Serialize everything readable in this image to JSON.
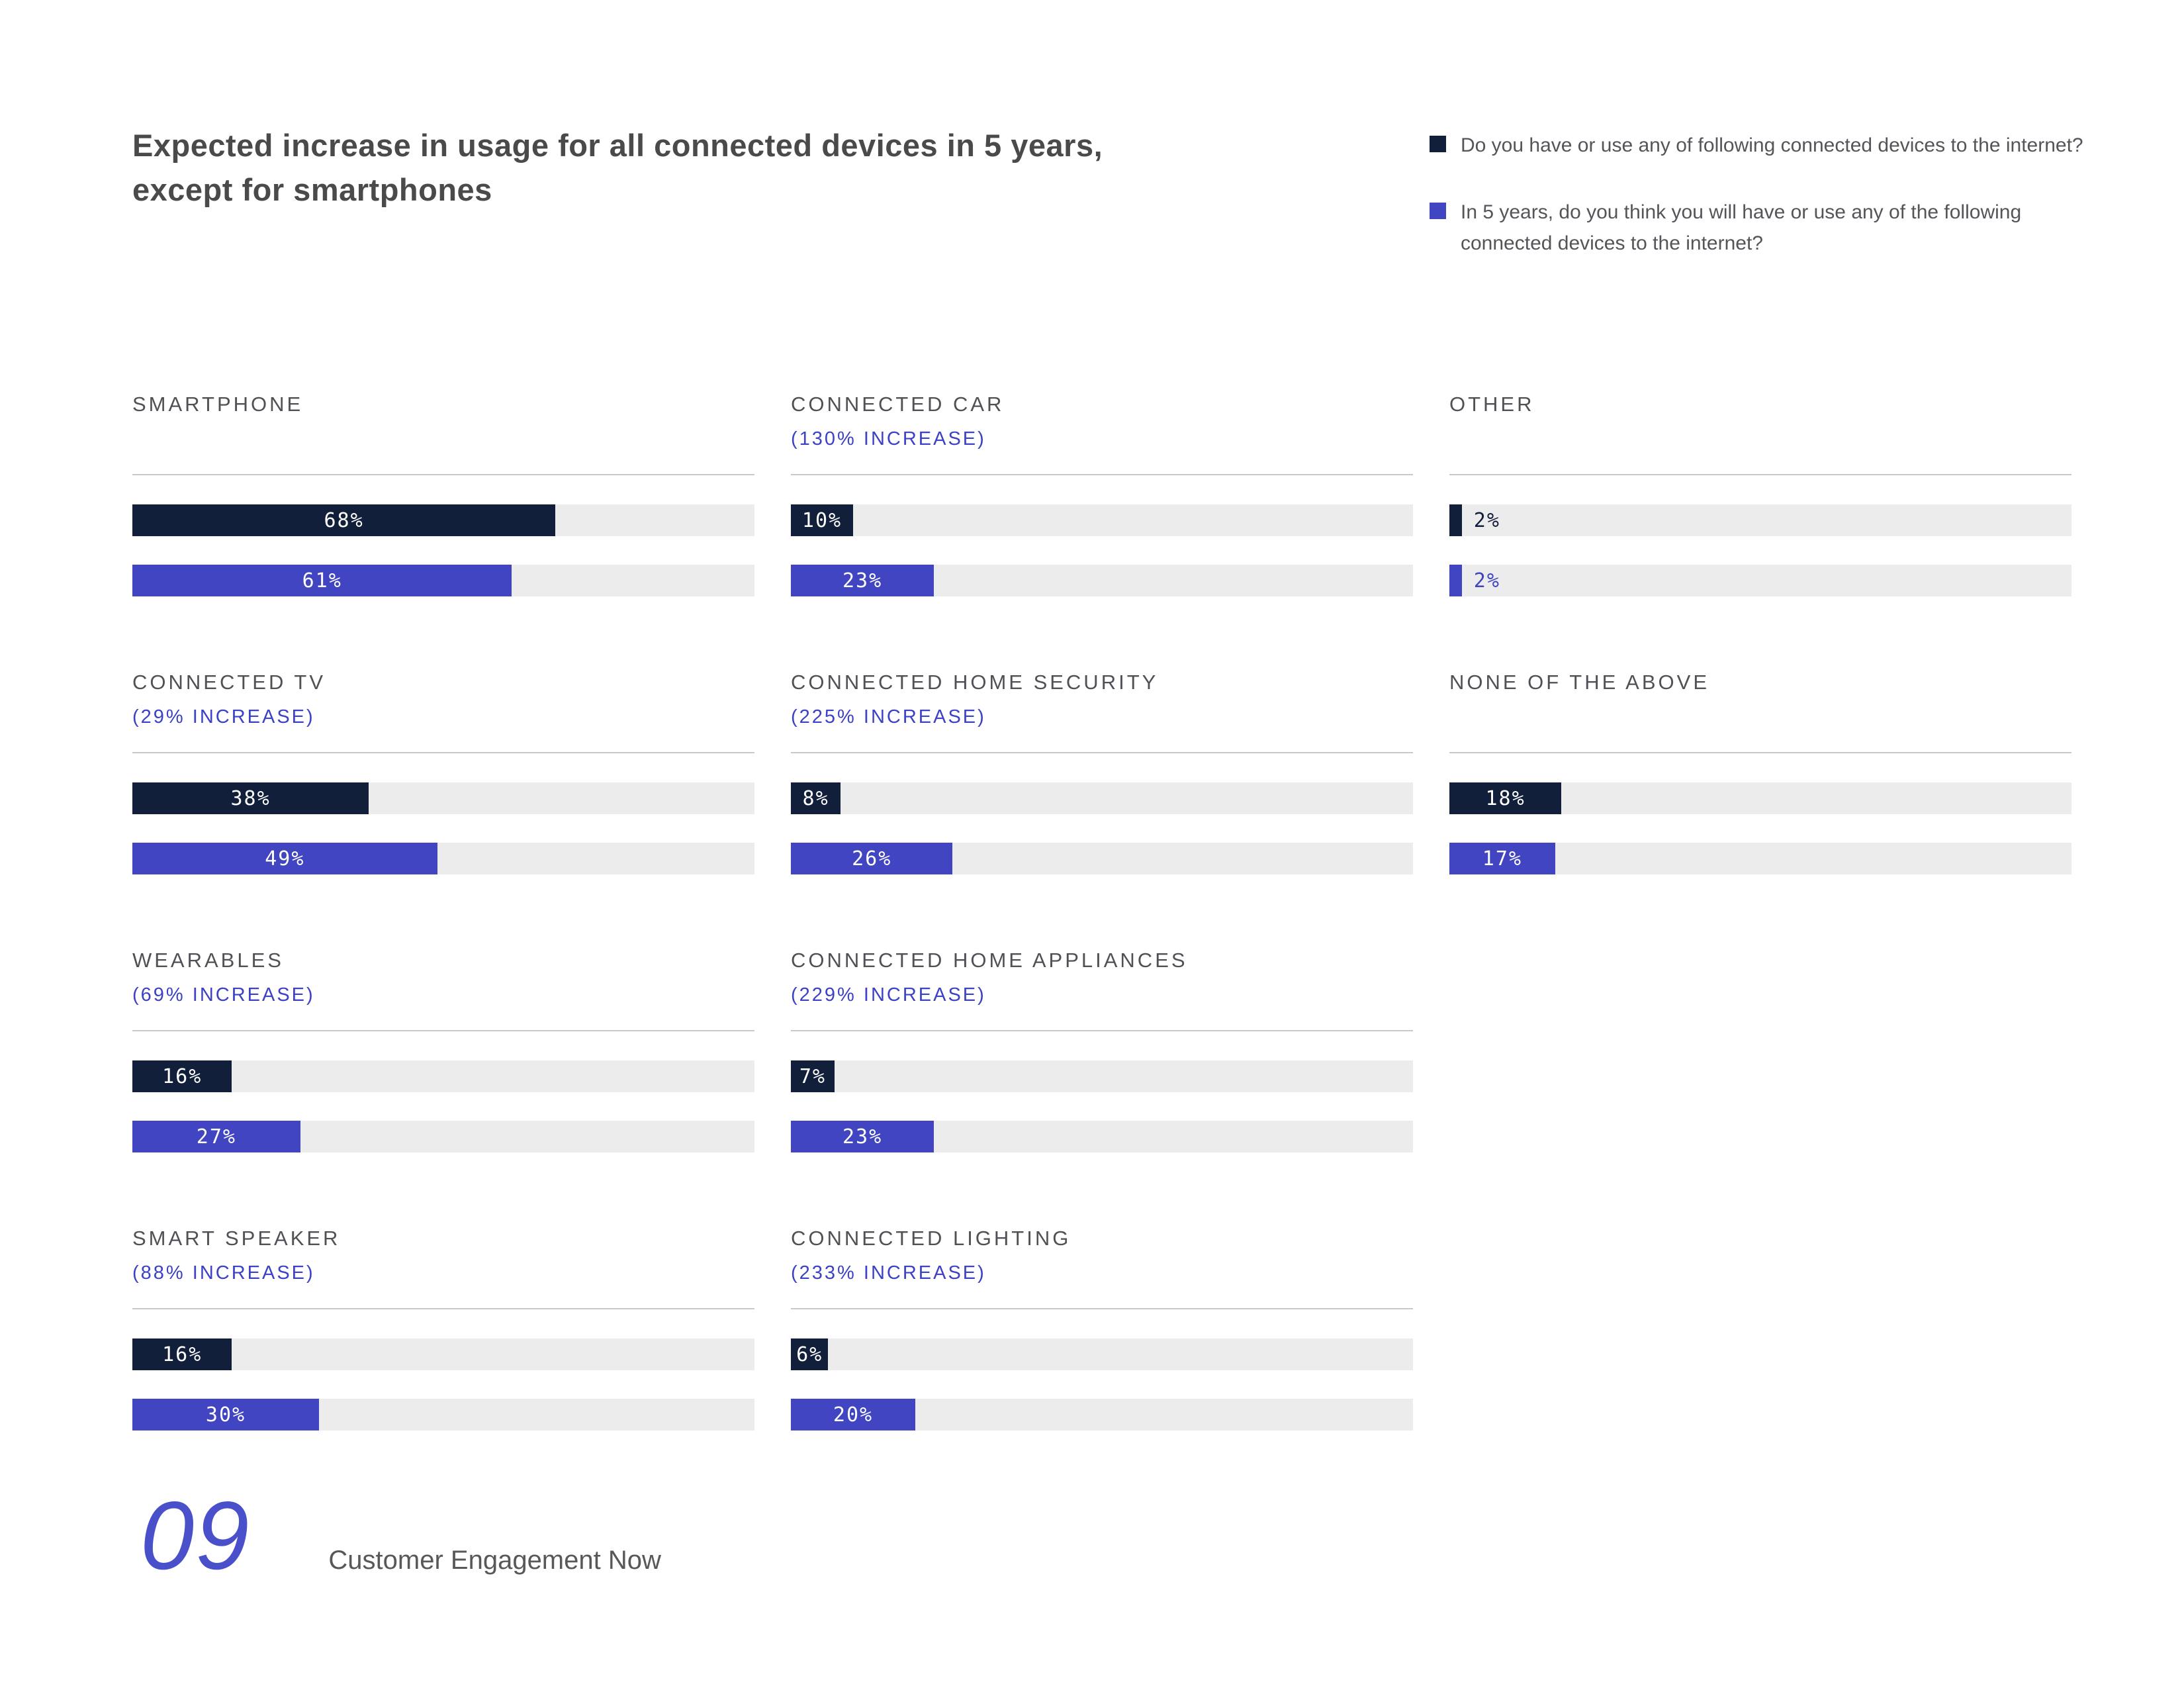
{
  "header": {
    "title_line1": "Expected increase in usage for all connected devices in 5 years,",
    "title_line2": "except for smartphones"
  },
  "legend": {
    "items": [
      {
        "label": "Do you have or use any of following connected devices to the internet?",
        "color": "#121f3b"
      },
      {
        "label": "In 5 years, do you think you will have or use any of the following connected devices to the internet?",
        "color": "#4145c1"
      }
    ]
  },
  "sections": [
    {
      "title": "SMARTPHONE",
      "subtitle": null,
      "now": 68,
      "future": 61,
      "row": 1,
      "col": 1
    },
    {
      "title": "CONNECTED CAR",
      "subtitle": "(130% INCREASE)",
      "now": 10,
      "future": 23,
      "row": 1,
      "col": 2
    },
    {
      "title": "OTHER",
      "subtitle": null,
      "now": 2,
      "future": 2,
      "row": 1,
      "col": 3
    },
    {
      "title": "CONNECTED TV",
      "subtitle": "(29% INCREASE)",
      "now": 38,
      "future": 49,
      "row": 2,
      "col": 1
    },
    {
      "title": "CONNECTED HOME SECURITY",
      "subtitle": "(225% INCREASE)",
      "now": 8,
      "future": 26,
      "row": 2,
      "col": 2
    },
    {
      "title": "NONE OF THE ABOVE",
      "subtitle": null,
      "now": 18,
      "future": 17,
      "row": 2,
      "col": 3
    },
    {
      "title": "WEARABLES",
      "subtitle": "(69% INCREASE)",
      "now": 16,
      "future": 27,
      "row": 3,
      "col": 1
    },
    {
      "title": "CONNECTED HOME APPLIANCES",
      "subtitle": "(229% INCREASE)",
      "now": 7,
      "future": 23,
      "row": 3,
      "col": 2
    },
    {
      "title": "SMART SPEAKER",
      "subtitle": "(88% INCREASE)",
      "now": 16,
      "future": 30,
      "row": 4,
      "col": 1
    },
    {
      "title": "CONNECTED LIGHTING",
      "subtitle": "(233% INCREASE)",
      "now": 6,
      "future": 20,
      "row": 4,
      "col": 2
    }
  ],
  "footer": {
    "page_number": "09",
    "text": "Customer Engagement Now"
  },
  "colors": {
    "navy": "#121f3b",
    "blue": "#4145c1",
    "accent_text": "#3c41c6",
    "track": "#ececec",
    "divider": "#c9c9c9",
    "title_text": "#4a4a4a",
    "section_title_text": "#4f5156",
    "legend_text": "#54555a",
    "footer_text": "#58585a",
    "page_number_color": "#4a4fca"
  },
  "chart_data": {
    "type": "bar",
    "orientation": "horizontal",
    "value_unit": "percent",
    "title": "Expected increase in usage for all connected devices in 5 years, except for smartphones",
    "categories": [
      "SMARTPHONE",
      "CONNECTED CAR",
      "OTHER",
      "CONNECTED TV",
      "CONNECTED HOME SECURITY",
      "NONE OF THE ABOVE",
      "WEARABLES",
      "CONNECTED HOME APPLIANCES",
      "SMART SPEAKER",
      "CONNECTED LIGHTING"
    ],
    "series": [
      {
        "name": "Do you have or use any of following connected devices to the internet?",
        "color": "#121f3b",
        "values": [
          68,
          10,
          2,
          38,
          8,
          18,
          16,
          7,
          16,
          6
        ]
      },
      {
        "name": "In 5 years, do you think you will have or use any of the following connected devices to the internet?",
        "color": "#4145c1",
        "values": [
          61,
          23,
          2,
          49,
          26,
          17,
          27,
          23,
          30,
          20
        ]
      }
    ],
    "increase_annotations": [
      null,
      "(130% INCREASE)",
      null,
      "(29% INCREASE)",
      "(225% INCREASE)",
      null,
      "(69% INCREASE)",
      "(229% INCREASE)",
      "(88% INCREASE)",
      "(233% INCREASE)"
    ],
    "xlim": [
      0,
      100
    ],
    "legend_position": "top-right",
    "grid": false
  }
}
